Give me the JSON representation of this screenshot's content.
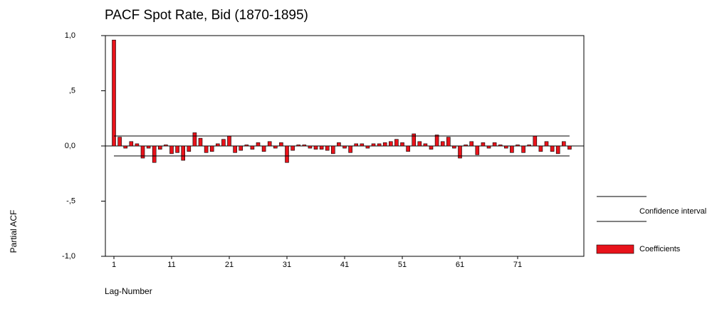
{
  "chart_data": {
    "type": "bar",
    "title": "PACF Spot Rate, Bid (1870-1895)",
    "x_label": "Lag-Number",
    "y_label": "Partial ACF",
    "categories": [
      "1",
      null,
      null,
      null,
      null,
      null,
      null,
      null,
      null,
      null,
      "11",
      null,
      null,
      null,
      null,
      null,
      null,
      null,
      null,
      null,
      "21",
      null,
      null,
      null,
      null,
      null,
      null,
      null,
      null,
      null,
      "31",
      null,
      null,
      null,
      null,
      null,
      null,
      null,
      null,
      null,
      "41",
      null,
      null,
      null,
      null,
      null,
      null,
      null,
      null,
      null,
      "51",
      null,
      null,
      null,
      null,
      null,
      null,
      null,
      null,
      null,
      "61",
      null,
      null,
      null,
      null,
      null,
      null,
      null,
      null,
      null,
      "71",
      null,
      null,
      null,
      null,
      null,
      null,
      null,
      null,
      null
    ],
    "series": [
      {
        "name": "Coefficients",
        "color": "#e8131b",
        "values": [
          0.96,
          0.08,
          -0.02,
          0.04,
          0.02,
          -0.11,
          -0.02,
          -0.15,
          -0.03,
          0.01,
          -0.07,
          -0.06,
          -0.13,
          -0.05,
          0.12,
          0.07,
          -0.06,
          -0.05,
          0.02,
          0.06,
          0.09,
          -0.06,
          -0.04,
          0.01,
          -0.03,
          0.03,
          -0.05,
          0.04,
          -0.02,
          0.03,
          -0.15,
          -0.04,
          0.01,
          0.01,
          -0.02,
          -0.03,
          -0.03,
          -0.04,
          -0.07,
          0.03,
          -0.02,
          -0.06,
          0.02,
          0.02,
          -0.02,
          0.02,
          0.02,
          0.03,
          0.04,
          0.06,
          0.03,
          -0.05,
          0.11,
          0.04,
          0.02,
          -0.03,
          0.1,
          0.04,
          0.08,
          -0.02,
          -0.11,
          0.01,
          0.04,
          -0.08,
          0.03,
          -0.02,
          0.03,
          0.01,
          -0.02,
          -0.06,
          0.01,
          -0.06,
          0.01,
          0.09,
          -0.05,
          0.04,
          -0.05,
          -0.07,
          0.04,
          -0.03
        ]
      }
    ],
    "confidence_interval": {
      "name": "Confidence interval",
      "color": "#000000",
      "values": [
        0.09,
        -0.09
      ]
    },
    "ylim": [
      -1,
      1
    ],
    "yticks": [
      {
        "value": -1,
        "label": "-1,0"
      },
      {
        "value": -0.5,
        "label": "-,5"
      },
      {
        "value": 0,
        "label": "0,0"
      },
      {
        "value": 0.5,
        "label": ",5"
      },
      {
        "value": 1,
        "label": "1,0"
      }
    ]
  }
}
